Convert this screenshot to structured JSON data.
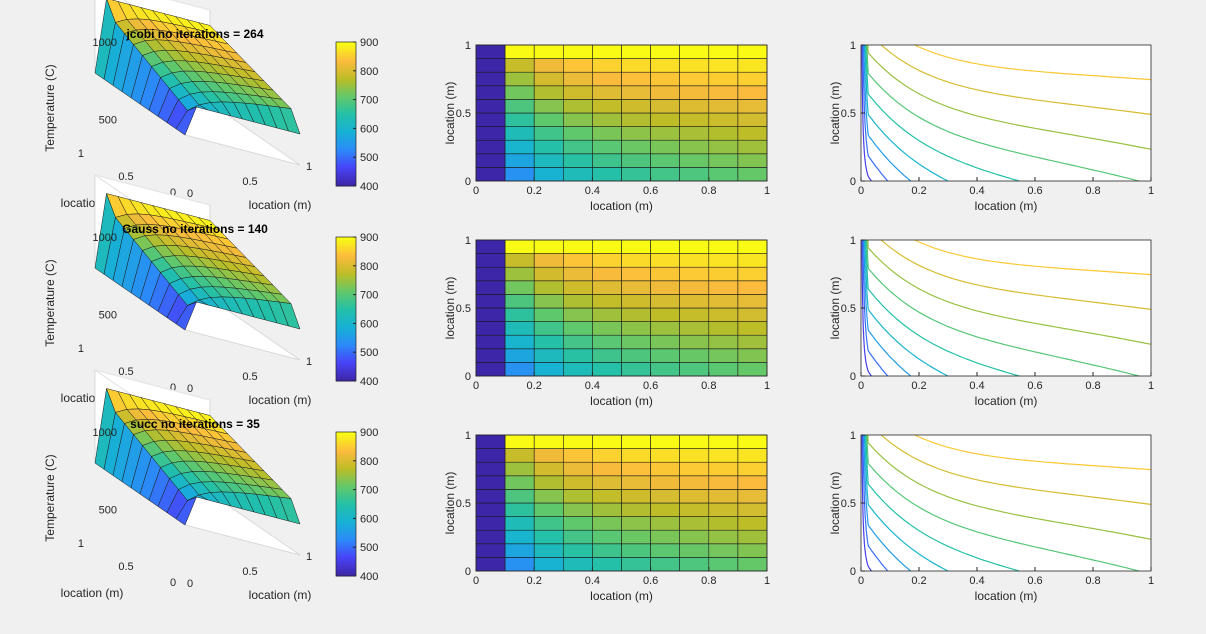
{
  "chart_data": [
    {
      "type": "surface",
      "title": "jcobi no iterations = 264",
      "xlabel": "location (m)",
      "ylabel": "location (m)",
      "zlabel": "Temperature (C)",
      "xlim": [
        0,
        1
      ],
      "ylim": [
        0,
        1
      ],
      "zlim": [
        400,
        1000
      ],
      "xticks": [
        "0",
        "0.5",
        "1"
      ],
      "yticks": [
        "0",
        "0.5",
        "1"
      ],
      "zticks": [
        "500",
        "1000"
      ],
      "colorbar": {
        "clim": [
          400,
          900
        ],
        "ticks": [
          "400",
          "500",
          "600",
          "700",
          "800",
          "900"
        ]
      }
    },
    {
      "type": "heatmap",
      "xlabel": "location (m)",
      "ylabel": "location (m)",
      "xlim": [
        0,
        1
      ],
      "ylim": [
        0,
        1
      ],
      "xticks": [
        "0",
        "0.2",
        "0.4",
        "0.6",
        "0.8",
        "1"
      ],
      "yticks": [
        "0",
        "0.5",
        "1"
      ]
    },
    {
      "type": "contour",
      "xlabel": "location (m)",
      "ylabel": "location (m)",
      "xlim": [
        0,
        1
      ],
      "ylim": [
        0,
        1
      ],
      "xticks": [
        "0",
        "0.2",
        "0.4",
        "0.6",
        "0.8",
        "1"
      ],
      "yticks": [
        "0",
        "0.5",
        "1"
      ]
    },
    {
      "type": "surface",
      "title": "Gauss no iterations = 140",
      "xlabel": "location (m)",
      "ylabel": "location (m)",
      "zlabel": "Temperature (C)",
      "xlim": [
        0,
        1
      ],
      "ylim": [
        0,
        1
      ],
      "zlim": [
        400,
        1000
      ],
      "xticks": [
        "0",
        "0.5",
        "1"
      ],
      "yticks": [
        "0",
        "0.5",
        "1"
      ],
      "zticks": [
        "500",
        "1000"
      ],
      "colorbar": {
        "clim": [
          400,
          900
        ],
        "ticks": [
          "400",
          "500",
          "600",
          "700",
          "800",
          "900"
        ]
      }
    },
    {
      "type": "heatmap",
      "xlabel": "location (m)",
      "ylabel": "location (m)",
      "xlim": [
        0,
        1
      ],
      "ylim": [
        0,
        1
      ],
      "xticks": [
        "0",
        "0.2",
        "0.4",
        "0.6",
        "0.8",
        "1"
      ],
      "yticks": [
        "0",
        "0.5",
        "1"
      ]
    },
    {
      "type": "contour",
      "xlabel": "location (m)",
      "ylabel": "location (m)",
      "xlim": [
        0,
        1
      ],
      "ylim": [
        0,
        1
      ],
      "xticks": [
        "0",
        "0.2",
        "0.4",
        "0.6",
        "0.8",
        "1"
      ],
      "yticks": [
        "0",
        "0.5",
        "1"
      ]
    },
    {
      "type": "surface",
      "title": "succ no iterations = 35",
      "xlabel": "location (m)",
      "ylabel": "location (m)",
      "zlabel": "Temperature (C)",
      "xlim": [
        0,
        1
      ],
      "ylim": [
        0,
        1
      ],
      "zlim": [
        400,
        1000
      ],
      "xticks": [
        "0",
        "0.5",
        "1"
      ],
      "yticks": [
        "0",
        "0.5",
        "1"
      ],
      "zticks": [
        "500",
        "1000"
      ],
      "colorbar": {
        "clim": [
          400,
          900
        ],
        "ticks": [
          "400",
          "500",
          "600",
          "700",
          "800",
          "900"
        ]
      }
    },
    {
      "type": "heatmap",
      "xlabel": "location (m)",
      "ylabel": "location (m)",
      "xlim": [
        0,
        1
      ],
      "ylim": [
        0,
        1
      ],
      "xticks": [
        "0",
        "0.2",
        "0.4",
        "0.6",
        "0.8",
        "1"
      ],
      "yticks": [
        "0",
        "0.5",
        "1"
      ]
    },
    {
      "type": "contour",
      "xlabel": "location (m)",
      "ylabel": "location (m)",
      "xlim": [
        0,
        1
      ],
      "ylim": [
        0,
        1
      ],
      "xticks": [
        "0",
        "0.2",
        "0.4",
        "0.6",
        "0.8",
        "1"
      ],
      "yticks": [
        "0",
        "0.5",
        "1"
      ]
    }
  ],
  "colormap": [
    "#3e26a8",
    "#4743f8",
    "#2b8bf8",
    "#17b1d6",
    "#23c0a8",
    "#62c86a",
    "#bcbd27",
    "#fcbb3d",
    "#f9fb15"
  ],
  "field": {
    "grid_x": [
      0,
      0.1,
      0.2,
      0.3,
      0.4,
      0.5,
      0.6,
      0.7,
      0.8,
      0.9,
      1.0
    ],
    "grid_y": [
      0,
      0.1,
      0.2,
      0.3,
      0.4,
      0.5,
      0.6,
      0.7,
      0.8,
      0.9,
      1.0
    ],
    "left_edge_T": 400,
    "top_edge_T": 900,
    "bottom_edge_T": 600,
    "right_edge_T_range": [
      600,
      900
    ],
    "contour_levels": [
      450,
      500,
      550,
      600,
      650,
      700,
      750,
      800,
      850
    ]
  }
}
